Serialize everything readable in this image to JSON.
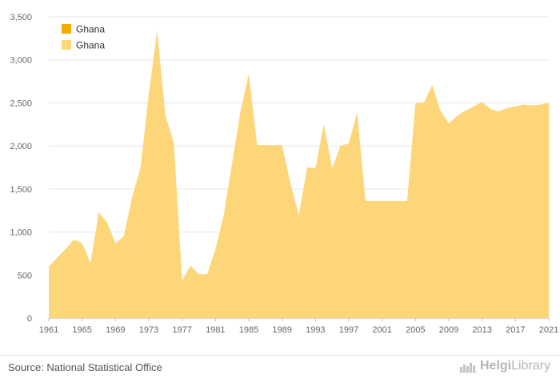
{
  "chart_data": {
    "type": "area",
    "legend": [
      "Ghana",
      "Ghana"
    ],
    "legend_colors": [
      "#f2ac00",
      "#fcd679"
    ],
    "series": [
      {
        "name": "Ghana",
        "color": "#fcd679",
        "x": [
          1961,
          1962,
          1963,
          1964,
          1965,
          1966,
          1967,
          1968,
          1969,
          1970,
          1971,
          1972,
          1973,
          1974,
          1975,
          1976,
          1977,
          1978,
          1979,
          1980,
          1981,
          1982,
          1983,
          1984,
          1985,
          1986,
          1987,
          1988,
          1989,
          1990,
          1991,
          1992,
          1993,
          1994,
          1995,
          1996,
          1997,
          1998,
          1999,
          2000,
          2001,
          2002,
          2003,
          2004,
          2005,
          2006,
          2007,
          2008,
          2009,
          2010,
          2011,
          2012,
          2013,
          2014,
          2015,
          2016,
          2017,
          2018,
          2019,
          2020,
          2021
        ],
        "values": [
          600,
          700,
          800,
          910,
          870,
          640,
          1230,
          1110,
          870,
          950,
          1410,
          1740,
          2600,
          3340,
          2350,
          2040,
          430,
          610,
          510,
          510,
          800,
          1200,
          1800,
          2400,
          2840,
          2010,
          2010,
          2010,
          2010,
          1560,
          1200,
          1750,
          1740,
          2250,
          1740,
          2000,
          2030,
          2390,
          1360,
          1360,
          1360,
          1360,
          1360,
          1360,
          2500,
          2500,
          2710,
          2410,
          2260,
          2350,
          2410,
          2460,
          2510,
          2430,
          2400,
          2440,
          2460,
          2480,
          2470,
          2480,
          2500
        ]
      }
    ],
    "xticks": [
      "1961",
      "1965",
      "1969",
      "1973",
      "1977",
      "1981",
      "1985",
      "1989",
      "1993",
      "1997",
      "2001",
      "2005",
      "2009",
      "2013",
      "2017",
      "2021"
    ],
    "yticks": [
      "0",
      "500",
      "1,000",
      "1,500",
      "2,000",
      "2,500",
      "3,000",
      "3,500"
    ],
    "ylim": [
      0,
      3500
    ],
    "xlim": [
      1961,
      2021
    ],
    "grid": true,
    "legend_position": "top-left"
  },
  "footer": {
    "source": "Source: National Statistical Office",
    "brand_part1": "Helgi",
    "brand_part2": "Library"
  }
}
